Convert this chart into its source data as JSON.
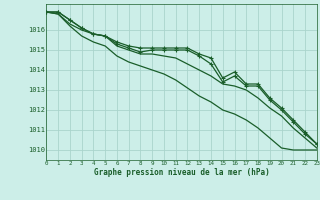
{
  "bg_color": "#cceee8",
  "grid_color": "#aad4cc",
  "line_color": "#1a5e2a",
  "xlabel": "Graphe pression niveau de la mer (hPa)",
  "xlim": [
    0,
    23
  ],
  "ylim": [
    1009.5,
    1017.3
  ],
  "yticks": [
    1010,
    1011,
    1012,
    1013,
    1014,
    1015,
    1016
  ],
  "xticks": [
    0,
    1,
    2,
    3,
    4,
    5,
    6,
    7,
    8,
    9,
    10,
    11,
    12,
    13,
    14,
    15,
    16,
    17,
    18,
    19,
    20,
    21,
    22,
    23
  ],
  "series": [
    {
      "y": [
        1016.9,
        1016.9,
        1016.5,
        1016.1,
        1015.8,
        1015.7,
        1015.4,
        1015.2,
        1015.1,
        1015.1,
        1015.1,
        1015.1,
        1015.1,
        1014.8,
        1014.6,
        1013.6,
        1013.9,
        1013.3,
        1013.3,
        1012.6,
        1012.1,
        1011.5,
        1010.9,
        1010.3
      ],
      "marker": "+",
      "markersize": 3.5
    },
    {
      "y": [
        1016.9,
        1016.9,
        1016.5,
        1016.1,
        1015.8,
        1015.7,
        1015.3,
        1015.1,
        1014.9,
        1015.0,
        1015.0,
        1015.0,
        1015.0,
        1014.7,
        1014.3,
        1013.4,
        1013.7,
        1013.2,
        1013.2,
        1012.5,
        1012.0,
        1011.4,
        1010.8,
        1010.3
      ],
      "marker": "+",
      "markersize": 3.5
    },
    {
      "y": [
        1016.9,
        1016.8,
        1016.3,
        1016.0,
        1015.8,
        1015.7,
        1015.2,
        1015.0,
        1014.8,
        1014.8,
        1014.7,
        1014.6,
        1014.3,
        1014.0,
        1013.7,
        1013.3,
        1013.2,
        1013.0,
        1012.6,
        1012.1,
        1011.7,
        1011.1,
        1010.6,
        1010.1
      ],
      "marker": null,
      "markersize": 0
    },
    {
      "y": [
        1016.9,
        1016.8,
        1016.2,
        1015.7,
        1015.4,
        1015.2,
        1014.7,
        1014.4,
        1014.2,
        1014.0,
        1013.8,
        1013.5,
        1013.1,
        1012.7,
        1012.4,
        1012.0,
        1011.8,
        1011.5,
        1011.1,
        1010.6,
        1010.1,
        1010.0,
        1010.0,
        1010.0
      ],
      "marker": null,
      "markersize": 0
    }
  ]
}
